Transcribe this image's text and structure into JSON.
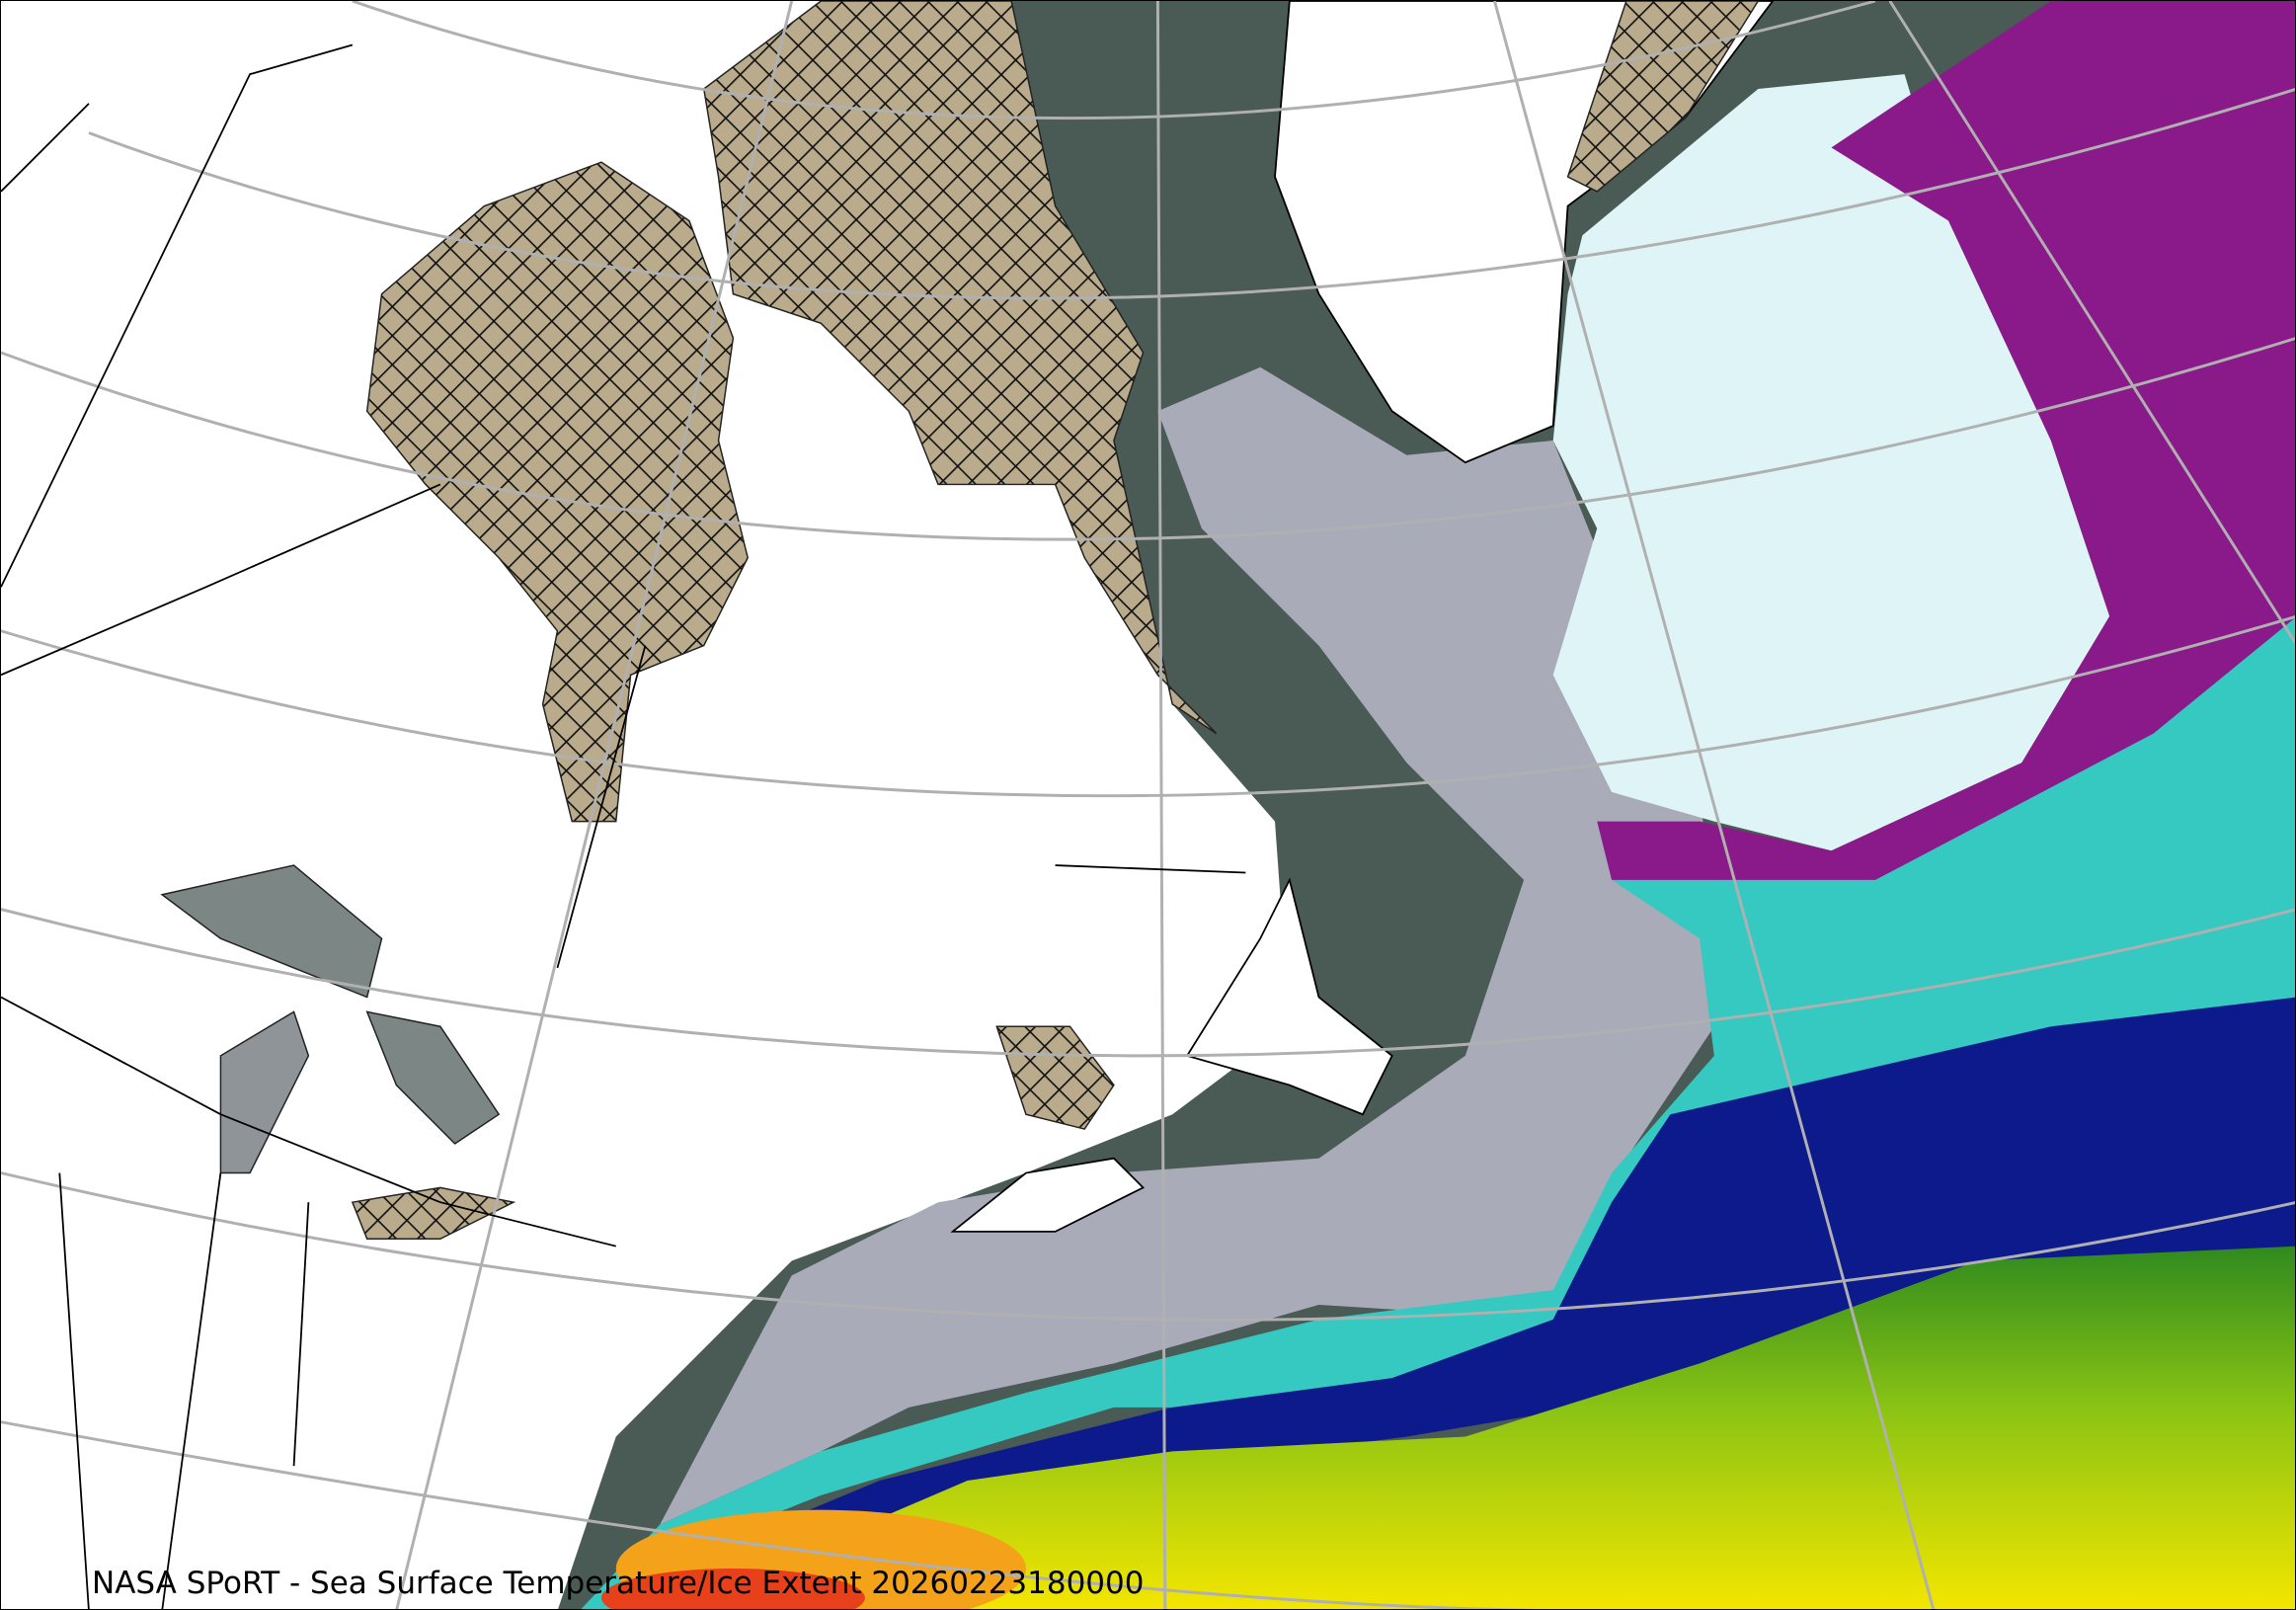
{
  "map": {
    "caption": "NASA SPoRT - Sea Surface Temperature/Ice Extent 20260223180000",
    "colors": {
      "land": "#ffffff",
      "ice": "#b9ab8c",
      "cold_water": "#4a5a55",
      "cool_water": "#a9acb8",
      "near_freezing": "#dff4f6",
      "purple": "#8a1a8a",
      "teal": "#35c9c2",
      "navy": "#0c1a8c",
      "green": "#2f8a1e",
      "yellow_green": "#b3d400",
      "yellow": "#f4e600",
      "red": "#e8401a",
      "graticule": "#b0b0b0"
    }
  }
}
